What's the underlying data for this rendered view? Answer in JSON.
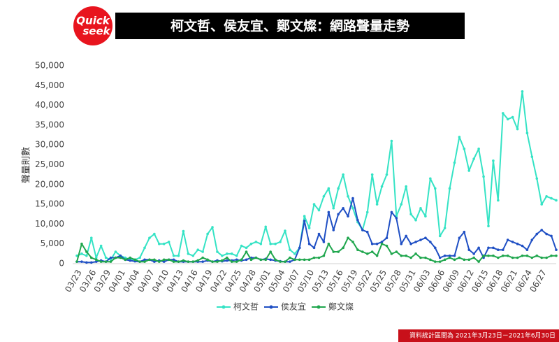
{
  "logo": {
    "name": "Quick",
    "name2": "seek"
  },
  "footer": "資料統計區間為 2021年3月23日－2021年6月30日",
  "chart_data": {
    "type": "line",
    "title": "柯文哲、侯友宜、鄭文燦：網路聲量走勢",
    "y_label": "聲量則數",
    "categories": [
      "03/23",
      null,
      null,
      "03/26",
      null,
      null,
      "03/29",
      null,
      null,
      "04/01",
      null,
      null,
      "04/04",
      null,
      null,
      "04/07",
      null,
      null,
      "04/10",
      null,
      null,
      "04/13",
      null,
      null,
      "04/16",
      null,
      null,
      "04/19",
      null,
      null,
      "04/22",
      null,
      null,
      "04/25",
      null,
      null,
      "04/28",
      null,
      null,
      "05/01",
      null,
      null,
      "05/04",
      null,
      null,
      "05/07",
      null,
      null,
      "05/10",
      null,
      null,
      "05/13",
      null,
      null,
      "05/16",
      null,
      null,
      "05/19",
      null,
      null,
      "05/22",
      null,
      null,
      "05/25",
      null,
      null,
      "05/28",
      null,
      null,
      "05/31",
      null,
      null,
      "06/03",
      null,
      null,
      "06/06",
      null,
      null,
      "06/09",
      null,
      null,
      "06/12",
      null,
      null,
      "06/15",
      null,
      null,
      "06/18",
      null,
      null,
      "06/21",
      null,
      null,
      "06/24",
      null,
      null,
      "06/27",
      null,
      null,
      null
    ],
    "series": [
      {
        "name": "柯文哲",
        "color": "#35e3c5",
        "values": [
          2000,
          2500,
          2000,
          6500,
          1500,
          4500,
          1500,
          1000,
          3000,
          2000,
          1500,
          1000,
          1000,
          1500,
          4000,
          6500,
          7500,
          5000,
          5000,
          5500,
          2000,
          2000,
          8200,
          2500,
          2000,
          3500,
          3000,
          7500,
          9200,
          3000,
          2000,
          2500,
          2500,
          2000,
          4500,
          4000,
          5000,
          5500,
          5000,
          9300,
          5000,
          5000,
          5500,
          8300,
          3500,
          2500,
          4000,
          12000,
          9000,
          15000,
          13500,
          17000,
          19000,
          14000,
          19000,
          22500,
          17000,
          14000,
          10500,
          8500,
          13000,
          22500,
          15000,
          19500,
          22500,
          31000,
          12000,
          15000,
          19500,
          12500,
          11000,
          14000,
          12000,
          21500,
          19000,
          7000,
          9000,
          19000,
          25500,
          32000,
          29000,
          23500,
          26500,
          29000,
          22000,
          9500,
          26000,
          16000,
          38000,
          36500,
          37000,
          34000,
          43500,
          33000,
          27000,
          21500,
          15000,
          17000,
          16500,
          16000
        ]
      },
      {
        "name": "侯友宜",
        "color": "#1f4fc4",
        "values": [
          500,
          500,
          300,
          300,
          500,
          800,
          500,
          1500,
          1500,
          2000,
          1000,
          800,
          600,
          500,
          1000,
          1000,
          500,
          800,
          500,
          1000,
          1000,
          500,
          500,
          500,
          500,
          500,
          500,
          800,
          500,
          800,
          600,
          800,
          800,
          1000,
          800,
          1000,
          1500,
          1500,
          1000,
          1200,
          1000,
          800,
          600,
          500,
          500,
          1000,
          4000,
          10800,
          5000,
          4000,
          7500,
          5500,
          13000,
          8500,
          12500,
          14000,
          12000,
          16500,
          11000,
          8500,
          8000,
          5000,
          5000,
          5500,
          6500,
          13000,
          11500,
          5000,
          7000,
          5000,
          5500,
          6000,
          6500,
          5500,
          4000,
          1500,
          2000,
          2000,
          2000,
          6500,
          8000,
          3500,
          2500,
          4000,
          1500,
          4000,
          4000,
          3500,
          3500,
          6000,
          5500,
          5000,
          4500,
          3500,
          6000,
          7500,
          8500,
          7500,
          7000,
          3500
        ]
      },
      {
        "name": "鄭文燦",
        "color": "#1fa64d",
        "values": [
          500,
          5000,
          3000,
          1500,
          1000,
          500,
          500,
          500,
          1500,
          1500,
          1000,
          1500,
          1000,
          500,
          500,
          1000,
          1000,
          500,
          1000,
          1000,
          500,
          500,
          800,
          500,
          500,
          800,
          1500,
          1000,
          500,
          500,
          800,
          1500,
          500,
          500,
          1000,
          3000,
          1000,
          1500,
          1000,
          1000,
          3000,
          1000,
          500,
          500,
          1500,
          1000,
          1000,
          1000,
          1000,
          1500,
          1500,
          2000,
          5000,
          3000,
          3000,
          4000,
          6500,
          5500,
          3500,
          3000,
          2500,
          3000,
          2000,
          5000,
          4500,
          2500,
          3000,
          2000,
          2000,
          1500,
          2500,
          1500,
          1500,
          1000,
          500,
          500,
          1000,
          1500,
          1000,
          1500,
          1000,
          1000,
          1500,
          500,
          2000,
          2000,
          2000,
          1500,
          2000,
          2000,
          1500,
          1500,
          2000,
          2000,
          1500,
          2000,
          1500,
          1500,
          2000,
          2000
        ]
      }
    ],
    "ylim": [
      0,
      50000
    ],
    "yticks": [
      0,
      {
        "value": 5000,
        "label": "5,000"
      },
      {
        "value": 10000,
        "label": "10,000"
      },
      {
        "value": 15000,
        "label": "15,000"
      },
      {
        "value": 20000,
        "label": "20,000"
      },
      {
        "value": 25000,
        "label": "25,000"
      },
      {
        "value": 30000,
        "label": "30,000"
      },
      {
        "value": 35000,
        "label": "35,000"
      },
      {
        "value": 40000,
        "label": "40,000"
      },
      {
        "value": 45000,
        "label": "45,000"
      },
      {
        "value": 50000,
        "label": "50,000"
      }
    ],
    "grid": false,
    "legend": "bottom"
  }
}
